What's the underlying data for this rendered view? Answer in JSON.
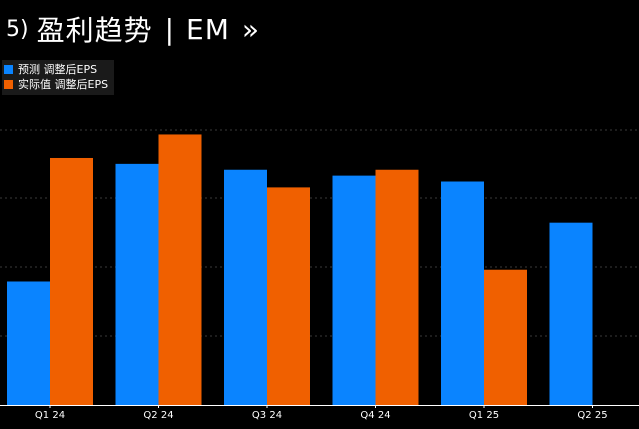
{
  "header": {
    "index": "5)",
    "title": "盈利趋势",
    "separator": "|",
    "ticker": "EM",
    "chevron": "»"
  },
  "colors": {
    "forecast": "#0a84ff",
    "actual": "#f06000",
    "grid": "#3a3a3a",
    "axis": "#ffffff",
    "background": "#000000"
  },
  "chart_data": {
    "type": "bar",
    "title": "盈利趋势 | EM",
    "categories": [
      "Q1 24",
      "Q2 24",
      "Q3 24",
      "Q4 24",
      "Q1 25",
      "Q2 25"
    ],
    "series": [
      {
        "name": "预测 调整后EPS",
        "values": [
          0.21,
          0.41,
          0.4,
          0.39,
          0.38,
          0.31
        ]
      },
      {
        "name": "实际值 调整后EPS",
        "values": [
          0.42,
          0.46,
          0.37,
          0.4,
          0.23,
          null
        ]
      }
    ],
    "ylim": [
      0,
      0.59
    ],
    "grid": true,
    "legend_position": "top-left",
    "xlabel": "",
    "ylabel": ""
  }
}
